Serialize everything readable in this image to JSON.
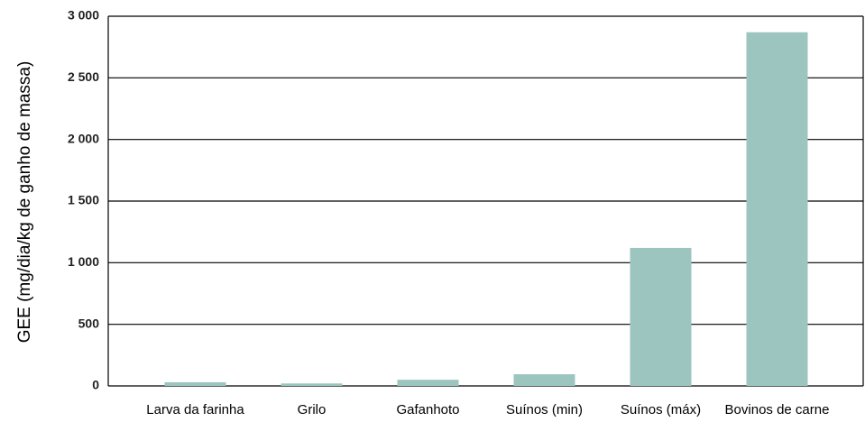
{
  "chart_data": {
    "type": "bar",
    "y_label": "GEE (mg/dia/kg de ganho de massa)",
    "categories": [
      "Larva da farinha",
      "Grilo",
      "Gafanhoto",
      "Suínos (min)",
      "Suínos (máx)",
      "Bovinos de carne"
    ],
    "values": [
      30,
      20,
      50,
      95,
      1120,
      2870
    ],
    "color": "#9cc5bf",
    "ylim": [
      0,
      3000
    ],
    "yticks": [
      0,
      500,
      {
        "value": 1000,
        "label": "1 000"
      },
      {
        "value": 1500,
        "label": "1 500"
      },
      {
        "value": 2000,
        "label": "2 000"
      },
      {
        "value": 2500,
        "label": "2 500"
      },
      {
        "value": 3000,
        "label": "3 000"
      }
    ],
    "grid": true
  }
}
